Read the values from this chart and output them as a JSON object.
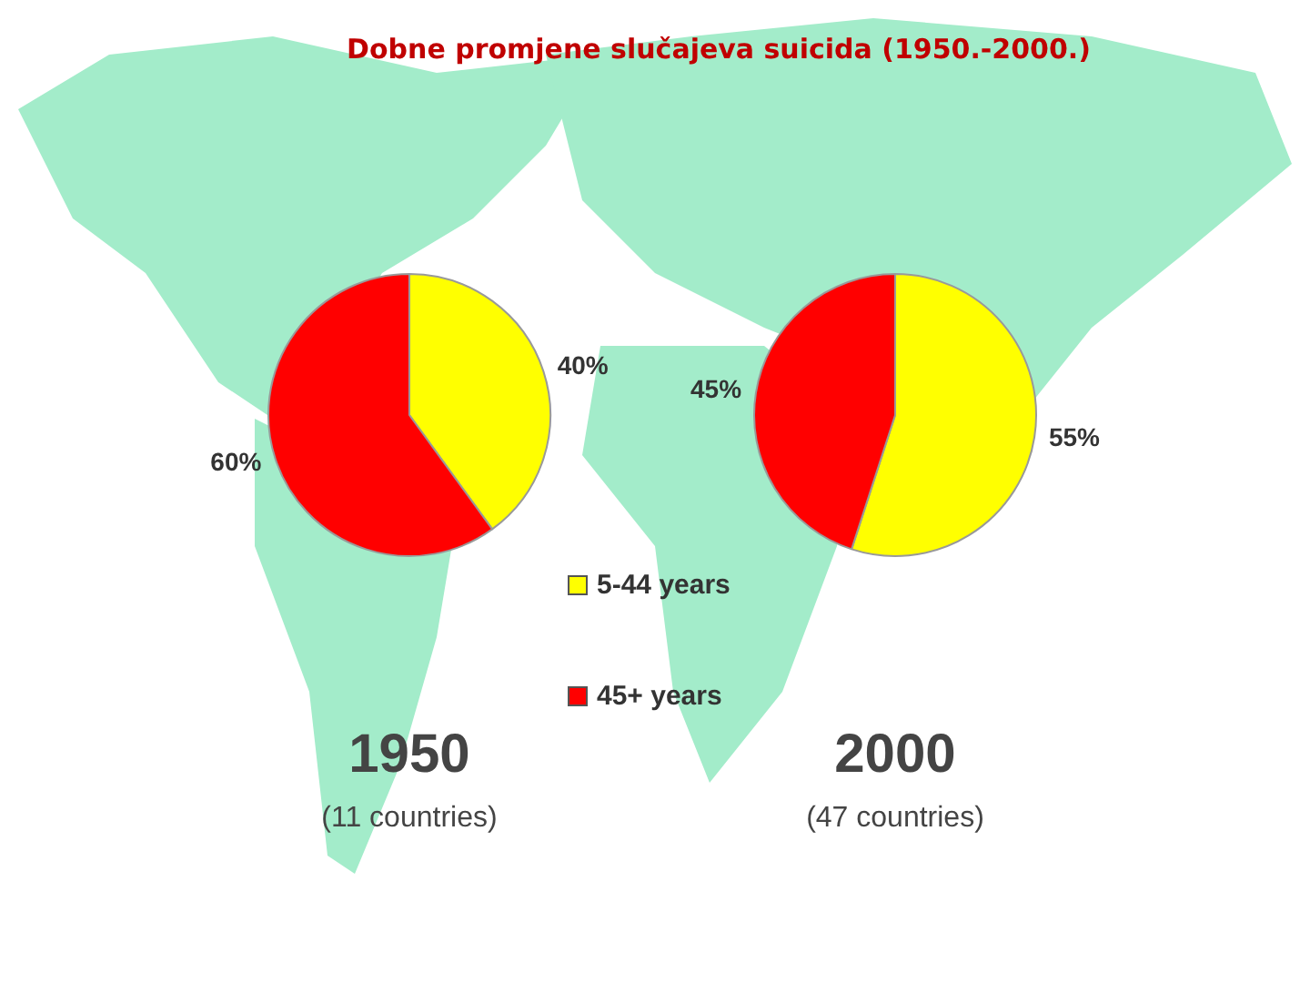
{
  "chart_data": {
    "type": "pie",
    "title": "Dobne promjene slučajeva suicida (1950.-2000.)",
    "categories": [
      "5-44 years",
      "45+ years"
    ],
    "colors": [
      "#ffff00",
      "#ff0000"
    ],
    "legend": "bottom",
    "series": [
      {
        "name": "1950",
        "values": [
          40,
          60
        ],
        "value_labels": [
          "40%",
          "60%"
        ]
      },
      {
        "name": "2000",
        "values": [
          55,
          45
        ],
        "value_labels": [
          "55%",
          "45%"
        ]
      }
    ],
    "annotations": [
      "(11 countries)",
      "(47 countries)"
    ]
  }
}
